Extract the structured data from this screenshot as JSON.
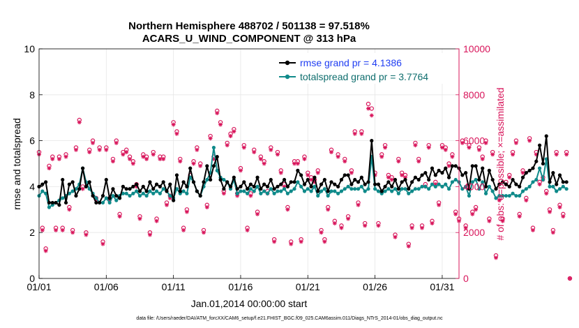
{
  "chart_data": {
    "type": "line",
    "title_line1": "Northern Hemisphere 488702 / 501138 = 97.518%",
    "title_line2": "ACARS_U_WIND_COMPONENT @ 313 hPa",
    "xlabel": "Jan.01,2014 00:00:00 start",
    "ylabel_left": "rmse and totalspread",
    "ylabel_right": "# of obs: o=possible; ×=assimilated",
    "footnote": "data file: /Users/raeder/DAI/ATM_forcXX/CAM6_setup/f.e21.FHIST_BGC.f09_025.CAM6assim.011/Diags_NTrS_2014-01/obs_diag_output.nc",
    "x_ticks": [
      "01/01",
      "01/06",
      "01/11",
      "01/16",
      "01/21",
      "01/26",
      "01/31"
    ],
    "x_tick_days": [
      1,
      6,
      11,
      16,
      21,
      26,
      31
    ],
    "xlim_days": [
      1,
      32.25
    ],
    "ylim_left": [
      0,
      10
    ],
    "yticks_left": [
      "0",
      "2",
      "4",
      "6",
      "8",
      "10"
    ],
    "ylim_right": [
      0,
      10000
    ],
    "yticks_right": [
      "0",
      "2000",
      "4000",
      "6000",
      "8000",
      "10000"
    ],
    "colors": {
      "rmse": "#000000",
      "spread": "#0f8a8a",
      "obs": "#d8145a",
      "legend_rmse_text": "#1f3df2"
    },
    "series": [
      {
        "name": "rmse grand pr = 4.1386",
        "axis": "left",
        "start_day": 1.0,
        "step_days": 0.25,
        "values": [
          4.0,
          4.1,
          4.2,
          3.3,
          3.3,
          3.3,
          3.2,
          4.3,
          3.3,
          4.1,
          4.2,
          3.6,
          3.9,
          4.8,
          4.0,
          4.2,
          3.6,
          3.3,
          3.3,
          3.6,
          4.3,
          3.5,
          3.9,
          3.6,
          3.5,
          4.0,
          3.9,
          3.9,
          4.0,
          4.1,
          3.8,
          4.0,
          3.8,
          4.2,
          3.9,
          4.1,
          4.0,
          4.2,
          3.8,
          4.1,
          3.4,
          4.5,
          3.8,
          4.2,
          4.0,
          4.8,
          4.2,
          3.8,
          3.6,
          4.2,
          4.9,
          4.3,
          4.9,
          5.3,
          4.3,
          3.9,
          4.2,
          4.0,
          4.4,
          3.9,
          4.0,
          4.2,
          3.9,
          4.1,
          4.0,
          4.4,
          3.9,
          4.1,
          4.0,
          4.3,
          3.9,
          4.0,
          4.1,
          4.3,
          4.0,
          4.2,
          4.2,
          4.7,
          4.5,
          4.1,
          4.3,
          4.0,
          4.4,
          3.8,
          4.1,
          4.3,
          3.8,
          4.2,
          4.1,
          4.0,
          4.3,
          4.5,
          4.5,
          4.1,
          4.3,
          4.2,
          4.4,
          4.1,
          4.2,
          6.0,
          4.1,
          4.1,
          3.8,
          4.0,
          4.2,
          4.0,
          4.3,
          3.9,
          4.2,
          4.3,
          3.9,
          4.2,
          4.4,
          4.3,
          4.5,
          4.6,
          4.3,
          4.8,
          4.5,
          4.7,
          4.6,
          4.8,
          4.4,
          4.9,
          4.9,
          4.8,
          4.5,
          4.6,
          3.9,
          4.9,
          4.9,
          4.3,
          4.8,
          4.0,
          4.7,
          4.3,
          3.9,
          4.1,
          4.2,
          4.1,
          4.0,
          4.3,
          4.1,
          4.0,
          4.4,
          4.6,
          4.7,
          4.8,
          5.1,
          5.8,
          5.0,
          6.2,
          4.2,
          4.6,
          4.1,
          4.5,
          4.2,
          4.2
        ]
      },
      {
        "name": "totalspread grand pr = 3.7764",
        "axis": "left",
        "start_day": 1.0,
        "step_days": 0.25,
        "values": [
          3.6,
          3.8,
          3.7,
          3.1,
          3.2,
          3.3,
          3.4,
          3.5,
          3.6,
          3.7,
          3.8,
          3.9,
          4.1,
          4.8,
          4.2,
          3.9,
          3.7,
          3.5,
          3.3,
          3.3,
          3.5,
          3.3,
          3.6,
          3.4,
          3.6,
          3.7,
          3.7,
          3.6,
          3.7,
          3.8,
          3.6,
          3.7,
          3.6,
          3.8,
          3.7,
          3.8,
          3.7,
          3.9,
          3.8,
          3.6,
          3.5,
          3.9,
          3.7,
          3.8,
          3.7,
          4.4,
          4.2,
          3.8,
          3.6,
          4.0,
          4.3,
          4.6,
          5.7,
          4.7,
          4.4,
          4.3,
          4.2,
          3.9,
          4.3,
          3.7,
          3.8,
          3.8,
          3.7,
          3.9,
          3.8,
          4.0,
          3.7,
          3.8,
          3.7,
          3.9,
          3.7,
          3.8,
          3.8,
          3.9,
          3.7,
          3.8,
          3.9,
          4.2,
          4.0,
          3.8,
          3.9,
          3.8,
          4.0,
          3.6,
          3.8,
          3.9,
          3.6,
          3.8,
          3.8,
          3.7,
          3.8,
          3.9,
          4.0,
          3.9,
          3.9,
          3.9,
          4.0,
          3.8,
          3.9,
          5.3,
          3.9,
          3.8,
          3.7,
          3.8,
          3.9,
          3.8,
          3.9,
          3.7,
          3.9,
          3.9,
          3.7,
          3.8,
          3.9,
          3.9,
          4.0,
          4.0,
          3.9,
          4.1,
          4.0,
          4.1,
          4.0,
          4.1,
          3.9,
          4.2,
          4.3,
          4.2,
          3.9,
          4.0,
          3.6,
          4.2,
          4.3,
          3.9,
          4.2,
          3.7,
          4.0,
          3.8,
          3.5,
          3.6,
          3.6,
          3.6,
          3.6,
          3.7,
          3.6,
          3.6,
          3.8,
          3.9,
          4.0,
          4.2,
          4.3,
          4.8,
          4.3,
          5.2,
          4.0,
          4.0,
          3.8,
          3.9,
          4.0,
          3.9
        ]
      },
      {
        "name": "obs possible",
        "axis": "right",
        "start_day": 1.0,
        "step_days": 0.25,
        "values": [
          5500,
          2200,
          1300,
          4900,
          5300,
          2200,
          5300,
          2200,
          5400,
          3100,
          2100,
          5700,
          6900,
          4000,
          2000,
          5600,
          6000,
          3500,
          5700,
          1600,
          5700,
          3500,
          5200,
          6000,
          2800,
          5500,
          5600,
          5300,
          5100,
          4100,
          2700,
          5400,
          5300,
          2000,
          5500,
          2600,
          5300,
          5300,
          3300,
          3600,
          6800,
          6400,
          5200,
          2200,
          3000,
          4500,
          5100,
          5700,
          5000,
          2100,
          3200,
          6200,
          5300,
          7300,
          6800,
          3800,
          5900,
          6300,
          6500,
          3700,
          4800,
          5800,
          2200,
          3700,
          5600,
          2900,
          5300,
          5100,
          3800,
          5700,
          1700,
          5500,
          4700,
          4100,
          3100,
          1600,
          5100,
          5100,
          1700,
          5300,
          4600,
          4400,
          4300,
          4700,
          2100,
          1700,
          3100,
          5600,
          2500,
          5400,
          2300,
          5200,
          2700,
          4700,
          6400,
          3300,
          6400,
          2400,
          7600,
          7400,
          4600,
          2400,
          5400,
          5800,
          4500,
          4400,
          1900,
          5200,
          4600,
          4500,
          1500,
          2300,
          5900,
          5200,
          2300,
          4100,
          5800,
          2500,
          4200,
          3300,
          5800,
          5700,
          5000,
          5400,
          2900,
          2600,
          6000,
          2300,
          5800,
          2900,
          3100,
          5700,
          5300,
          6000,
          2600,
          5500,
          1000,
          3500,
          2600,
          4200,
          4500,
          5500,
          6000,
          2800,
          4700,
          3500,
          6100,
          2200,
          5500,
          4200,
          4400,
          3800,
          3000,
          2100,
          5500,
          3200,
          2800,
          5500,
          0
        ]
      },
      {
        "name": "obs assimilated",
        "axis": "right",
        "start_day": 1.0,
        "step_days": 0.25,
        "values": [
          5400,
          2100,
          1200,
          4800,
          5200,
          2100,
          5200,
          2100,
          5300,
          3000,
          2000,
          5600,
          6800,
          3900,
          1900,
          5500,
          5900,
          3400,
          5600,
          1500,
          5600,
          3400,
          5100,
          5900,
          2700,
          5400,
          5500,
          5200,
          5000,
          4000,
          2600,
          5300,
          5200,
          1900,
          5400,
          2500,
          5200,
          5200,
          3200,
          3500,
          6700,
          6300,
          5100,
          2100,
          2900,
          4400,
          5000,
          5600,
          4900,
          2000,
          3100,
          6100,
          5200,
          7200,
          6700,
          3700,
          5800,
          6200,
          6400,
          3600,
          4700,
          5700,
          2100,
          3600,
          5500,
          2800,
          5200,
          5000,
          3700,
          5600,
          1600,
          5400,
          4600,
          4000,
          3000,
          1500,
          5000,
          5000,
          1600,
          5200,
          4500,
          4300,
          4200,
          4600,
          2000,
          1600,
          3000,
          5500,
          2400,
          5300,
          2200,
          5100,
          2600,
          4600,
          6300,
          3200,
          6300,
          2300,
          7400,
          7100,
          4500,
          2300,
          5300,
          5700,
          4400,
          4300,
          1800,
          5100,
          4500,
          4400,
          1400,
          2200,
          5800,
          5100,
          2200,
          4000,
          5700,
          2400,
          4100,
          3200,
          5700,
          5600,
          4900,
          5300,
          2800,
          2500,
          5900,
          2200,
          5700,
          2800,
          3000,
          5600,
          5200,
          5900,
          2500,
          5400,
          900,
          3400,
          2500,
          4100,
          4400,
          5400,
          5900,
          2700,
          4600,
          3400,
          6000,
          2100,
          5400,
          4100,
          4300,
          3700,
          2900,
          2000,
          5400,
          3100,
          2700,
          5400,
          0
        ]
      }
    ]
  },
  "legend": {
    "rmse_label": "rmse grand pr = 4.1386",
    "spread_label": "totalspread grand pr = 3.7764"
  }
}
